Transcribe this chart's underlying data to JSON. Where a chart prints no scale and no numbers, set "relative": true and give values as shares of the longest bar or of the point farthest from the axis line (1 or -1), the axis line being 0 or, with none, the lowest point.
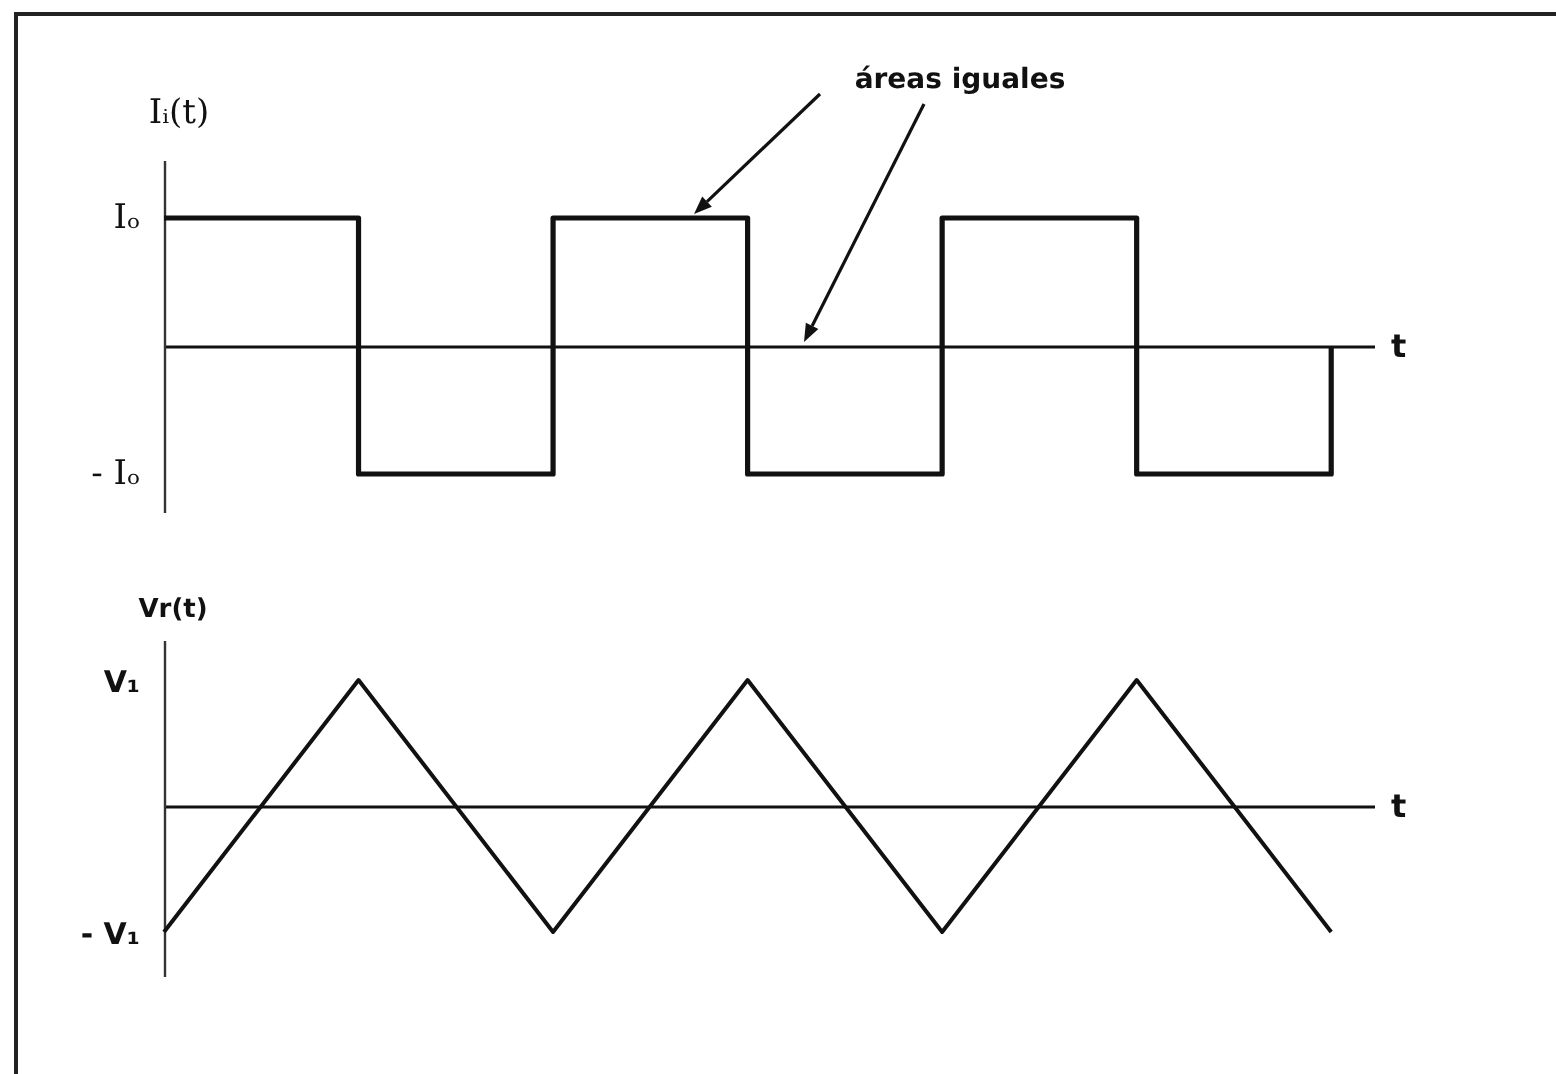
{
  "chart_data": [
    {
      "type": "step",
      "relative": true,
      "ylabel": "Iᵢ(t)",
      "xlabel": "t",
      "annotations": [
        "áreas iguales",
        "Iₒ",
        "- Iₒ"
      ],
      "categories": [
        null,
        null,
        null,
        null,
        null,
        null,
        null
      ],
      "values": [
        1,
        -1,
        1,
        -1,
        1,
        -1,
        0
      ],
      "color": "#111111"
    },
    {
      "type": "line",
      "relative": true,
      "ylabel": "Vr(t)",
      "xlabel": "t",
      "annotations": [
        "V₁",
        "- V₁"
      ],
      "categories": [
        null,
        null,
        null,
        null,
        null,
        null,
        null
      ],
      "values": [
        -1,
        1,
        -1,
        1,
        -1,
        1,
        -1
      ],
      "color": "#111111"
    }
  ]
}
